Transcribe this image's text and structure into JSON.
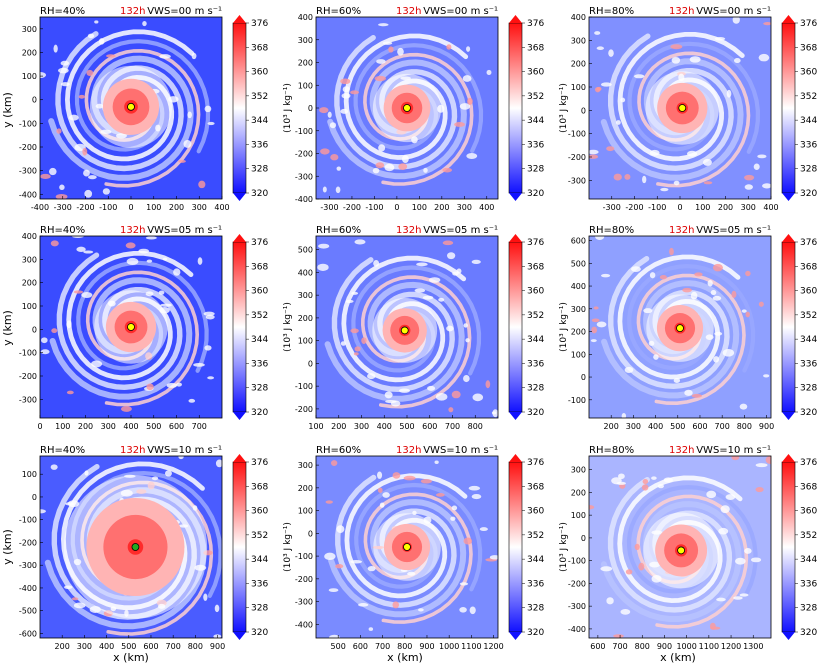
{
  "figure": {
    "xlabel": "x (km)",
    "ylabel": "y (km)",
    "time_label": "132h",
    "time_color": "#dd0000",
    "colorbar_ticks": [
      "320",
      "328",
      "336",
      "344",
      "352",
      "360",
      "368",
      "376"
    ],
    "colorbar_units": "(10³ J kg⁻¹)",
    "color_low": "#1010ff",
    "color_mid": "#ffffff",
    "color_high": "#ff1010",
    "center_marker_color": "#ffff00"
  },
  "chart_data": [
    {
      "type": "heatmap",
      "rh": "RH=40%",
      "vws": "VWS=00 m s⁻¹",
      "xlim": [
        -400,
        400
      ],
      "ylim": [
        -420,
        350
      ],
      "xticks": [
        "-400",
        "-300",
        "-200",
        "-100",
        "0",
        "100",
        "200",
        "300",
        "400"
      ],
      "xtick_vals": [
        -400,
        -300,
        -200,
        -100,
        0,
        100,
        200,
        300,
        400
      ],
      "yticks": [
        "-400",
        "-300",
        "-200",
        "-100",
        "0",
        "100",
        "200",
        "300"
      ],
      "ytick_vals": [
        -400,
        -300,
        -200,
        -100,
        0,
        100,
        200,
        300
      ],
      "center": [
        0,
        -30
      ],
      "center_color": "#ffff00",
      "core_scale": 95,
      "eye_scale": 60,
      "bg": "#3a4cff"
    },
    {
      "type": "heatmap",
      "rh": "RH=60%",
      "vws": "VWS=00 m s⁻¹",
      "xlim": [
        -360,
        450
      ],
      "ylim": [
        -400,
        400
      ],
      "xticks": [
        "-300",
        "-200",
        "-100",
        "0",
        "100",
        "200",
        "300",
        "400"
      ],
      "xtick_vals": [
        -300,
        -200,
        -100,
        0,
        100,
        200,
        300,
        400
      ],
      "yticks": [
        "-400",
        "-300",
        "-200",
        "-100",
        "0",
        "100",
        "200",
        "300",
        "400"
      ],
      "ytick_vals": [
        -400,
        -300,
        -200,
        -100,
        0,
        100,
        200,
        300,
        400
      ],
      "center": [
        45,
        0
      ],
      "center_color": "#ffff00",
      "core_scale": 80,
      "eye_scale": 55,
      "bg": "#6a7bff"
    },
    {
      "type": "heatmap",
      "rh": "RH=80%",
      "vws": "VWS=00 m s⁻¹",
      "xlim": [
        -400,
        400
      ],
      "ylim": [
        -380,
        400
      ],
      "xticks": [
        "-300",
        "-200",
        "-100",
        "0",
        "100",
        "200",
        "300",
        "400"
      ],
      "xtick_vals": [
        -300,
        -200,
        -100,
        0,
        100,
        200,
        300,
        400
      ],
      "yticks": [
        "-300",
        "-200",
        "-100",
        "0",
        "100",
        "200",
        "300",
        "400"
      ],
      "ytick_vals": [
        -300,
        -200,
        -100,
        0,
        100,
        200,
        300,
        400
      ],
      "center": [
        10,
        10
      ],
      "center_color": "#ffff00",
      "core_scale": 85,
      "eye_scale": 50,
      "bg": "#8090ff"
    },
    {
      "type": "heatmap",
      "rh": "RH=40%",
      "vws": "VWS=05 m s⁻¹",
      "xlim": [
        0,
        800
      ],
      "ylim": [
        -380,
        400
      ],
      "xticks": [
        "0",
        "100",
        "200",
        "300",
        "400",
        "500",
        "600",
        "700"
      ],
      "xtick_vals": [
        0,
        100,
        200,
        300,
        400,
        500,
        600,
        700
      ],
      "yticks": [
        "-300",
        "-200",
        "-100",
        "0",
        "100",
        "200",
        "300",
        "400"
      ],
      "ytick_vals": [
        -300,
        -200,
        -100,
        0,
        100,
        200,
        300,
        400
      ],
      "center": [
        400,
        10
      ],
      "center_color": "#ffff00",
      "core_scale": 85,
      "eye_scale": 55,
      "bg": "#3a4cff"
    },
    {
      "type": "heatmap",
      "rh": "RH=60%",
      "vws": "VWS=05 m s⁻¹",
      "xlim": [
        100,
        900
      ],
      "ylim": [
        -240,
        560
      ],
      "xticks": [
        "100",
        "200",
        "300",
        "400",
        "500",
        "600",
        "700",
        "800"
      ],
      "xtick_vals": [
        100,
        200,
        300,
        400,
        500,
        600,
        700,
        800
      ],
      "yticks": [
        "-200",
        "-100",
        "0",
        "100",
        "200",
        "300",
        "400",
        "500"
      ],
      "ytick_vals": [
        -200,
        -100,
        0,
        100,
        200,
        300,
        400,
        500
      ],
      "center": [
        490,
        145
      ],
      "center_color": "#ffff00",
      "core_scale": 75,
      "eye_scale": 50,
      "bg": "#6a7bff"
    },
    {
      "type": "heatmap",
      "rh": "RH=80%",
      "vws": "VWS=05 m s⁻¹",
      "xlim": [
        100,
        920
      ],
      "ylim": [
        -180,
        620
      ],
      "xticks": [
        "200",
        "300",
        "400",
        "500",
        "600",
        "700",
        "800",
        "900"
      ],
      "xtick_vals": [
        200,
        300,
        400,
        500,
        600,
        700,
        800,
        900
      ],
      "yticks": [
        "-100",
        "0",
        "100",
        "200",
        "300",
        "400",
        "500",
        "600"
      ],
      "ytick_vals": [
        -100,
        0,
        100,
        200,
        300,
        400,
        500,
        600
      ],
      "center": [
        510,
        215
      ],
      "center_color": "#ffff00",
      "core_scale": 80,
      "eye_scale": 50,
      "bg": "#8fa0ff"
    },
    {
      "type": "heatmap",
      "rh": "RH=40%",
      "vws": "VWS=10 m s⁻¹",
      "xlim": [
        100,
        920
      ],
      "ylim": [
        -620,
        180
      ],
      "xticks": [
        "200",
        "300",
        "400",
        "500",
        "600",
        "700",
        "800",
        "900"
      ],
      "xtick_vals": [
        200,
        300,
        400,
        500,
        600,
        700,
        800,
        900
      ],
      "yticks": [
        "-600",
        "-500",
        "-400",
        "-300",
        "-200",
        "-100",
        "0",
        "100"
      ],
      "ytick_vals": [
        -600,
        -500,
        -400,
        -300,
        -200,
        -100,
        0,
        100
      ],
      "center": [
        530,
        -220
      ],
      "center_color": "#22aa22",
      "core_scale": 170,
      "eye_scale": 70,
      "bg": "#4a5cff"
    },
    {
      "type": "heatmap",
      "rh": "RH=60%",
      "vws": "VWS=10 m s⁻¹",
      "xlim": [
        400,
        1220
      ],
      "ylim": [
        -460,
        340
      ],
      "xticks": [
        "500",
        "600",
        "700",
        "800",
        "900",
        "1000",
        "1100",
        "1200"
      ],
      "xtick_vals": [
        500,
        600,
        700,
        800,
        900,
        1000,
        1100,
        1200
      ],
      "yticks": [
        "-400",
        "-300",
        "-200",
        "-100",
        "0",
        "100",
        "200",
        "300"
      ],
      "ytick_vals": [
        -400,
        -300,
        -200,
        -100,
        0,
        100,
        200,
        300
      ],
      "center": [
        810,
        -60
      ],
      "center_color": "#ffff00",
      "core_scale": 80,
      "eye_scale": 45,
      "bg": "#7a8bff"
    },
    {
      "type": "heatmap",
      "rh": "RH=80%",
      "vws": "VWS=10 m s⁻¹",
      "xlim": [
        560,
        1380
      ],
      "ylim": [
        -440,
        360
      ],
      "xticks": [
        "600",
        "700",
        "800",
        "900",
        "1000",
        "1100",
        "1200",
        "1300"
      ],
      "xtick_vals": [
        600,
        700,
        800,
        900,
        1000,
        1100,
        1200,
        1300
      ],
      "yticks": [
        "-400",
        "-300",
        "-200",
        "-100",
        "0",
        "100",
        "200",
        "300"
      ],
      "ytick_vals": [
        -400,
        -300,
        -200,
        -100,
        0,
        100,
        200,
        300
      ],
      "center": [
        975,
        -55
      ],
      "center_color": "#ffff00",
      "core_scale": 90,
      "eye_scale": 55,
      "bg": "#aab5ff"
    }
  ]
}
